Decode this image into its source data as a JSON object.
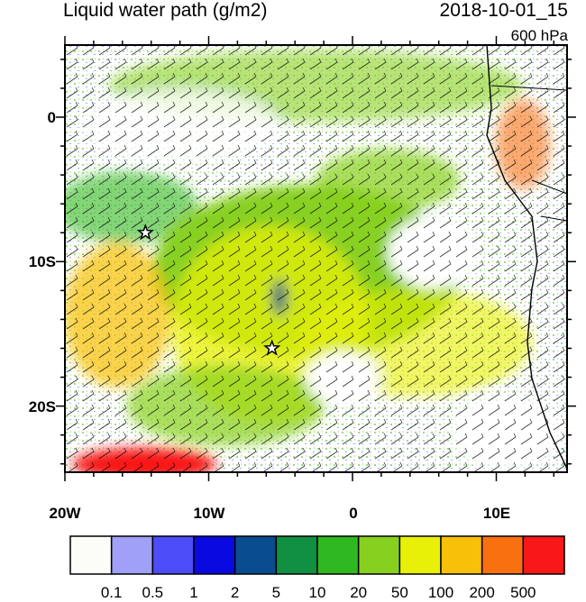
{
  "title_left": "Liquid water path (g/m2)",
  "title_right": "2018-10-01_15",
  "level_label": "600 hPa",
  "y_labels": [
    "0",
    "10S",
    "20S"
  ],
  "x_labels": [
    "20W",
    "10W",
    "0",
    "10E"
  ],
  "colorbar": {
    "labels": [
      "0.1",
      "0.5",
      "1",
      "2",
      "5",
      "10",
      "20",
      "50",
      "100",
      "200",
      "500"
    ],
    "colors": [
      "#fcfcf8",
      "#a0a0f8",
      "#4c4cf8",
      "#0a0ae0",
      "#0a4c90",
      "#109040",
      "#30b820",
      "#88d020",
      "#e8f008",
      "#f8c008",
      "#f87010",
      "#f81818"
    ]
  },
  "markers": [
    {
      "name": "star-west",
      "lon": -14.4,
      "lat": -8.0
    },
    {
      "name": "star-central",
      "lon": -5.6,
      "lat": -16.0
    }
  ]
}
